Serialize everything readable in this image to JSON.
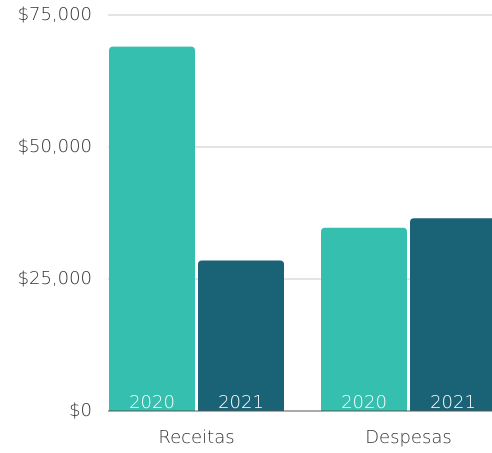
{
  "chart_data": {
    "type": "bar",
    "categories": [
      "Receitas",
      "Despesas"
    ],
    "series": [
      {
        "name": "2020",
        "color": "#35bfae",
        "values": [
          69000,
          34700
        ]
      },
      {
        "name": "2021",
        "color": "#1a6275",
        "values": [
          28500,
          36500
        ]
      }
    ],
    "ylim": [
      0,
      75000
    ],
    "yticks": [
      {
        "value": 0,
        "label": "$0"
      },
      {
        "value": 25000,
        "label": "$25,000"
      },
      {
        "value": 50000,
        "label": "$50,000"
      },
      {
        "value": 75000,
        "label": "$75,000"
      }
    ],
    "grid": true
  }
}
